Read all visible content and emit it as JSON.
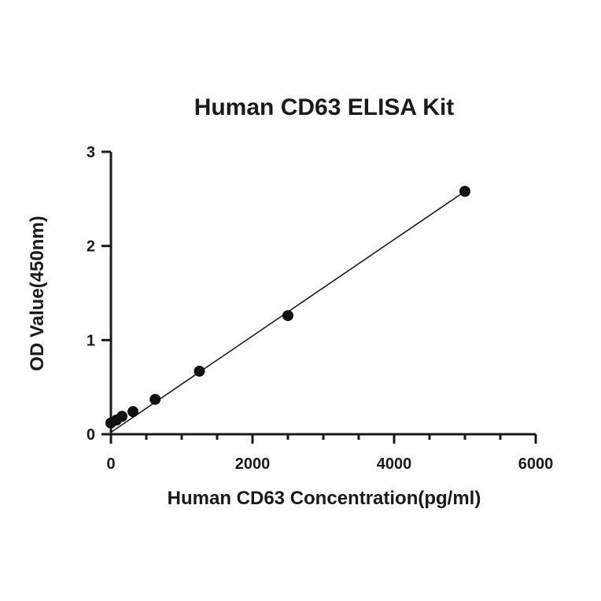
{
  "chart_data": {
    "type": "scatter",
    "title": "Human CD63 ELISA Kit",
    "xlabel": "Human CD63 Concentration(pg/ml)",
    "ylabel": "OD Value(450nm)",
    "xlim": [
      0,
      6000
    ],
    "ylim": [
      0,
      3
    ],
    "x_ticks": [
      "0",
      "2000",
      "4000",
      "6000"
    ],
    "y_ticks": [
      "0",
      "1",
      "2",
      "3"
    ],
    "x_minor_tick_step": 500,
    "grid": false,
    "legend": "none",
    "point_color": "#111111",
    "series": [
      {
        "x": [
          0,
          78,
          156,
          312,
          625,
          1250,
          2500,
          5000
        ],
        "y": [
          0.12,
          0.15,
          0.19,
          0.24,
          0.37,
          0.67,
          1.26,
          2.58
        ]
      }
    ],
    "fit_line": {
      "type": "linear",
      "x_range": [
        0,
        5000
      ],
      "y_range": [
        0.02,
        2.58
      ]
    }
  }
}
